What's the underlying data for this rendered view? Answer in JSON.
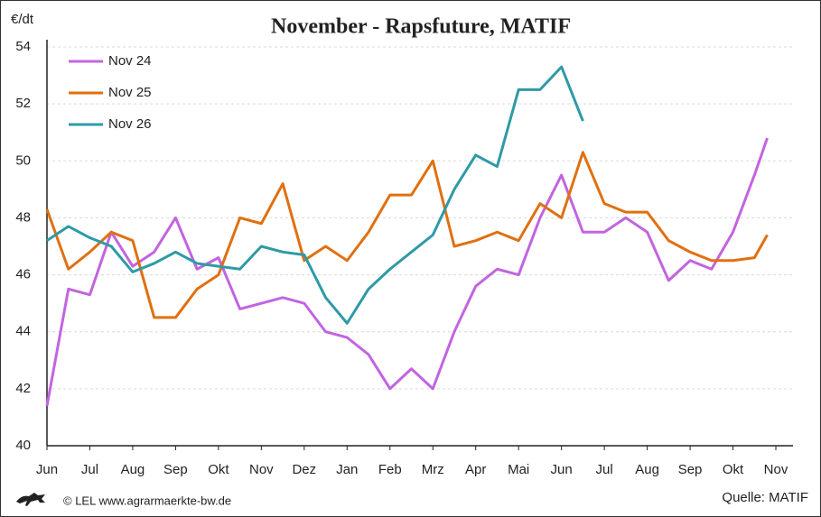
{
  "chart_data": {
    "type": "line",
    "title": "November - Rapsfuture, MATIF",
    "y_label": "€/dt",
    "source": "Quelle: MATIF",
    "credit": "© LEL www.agrarmaerkte-bw.de",
    "x": [
      0,
      0.5,
      1,
      1.5,
      2,
      2.5,
      3,
      3.5,
      4,
      4.5,
      5,
      5.5,
      6,
      6.5,
      7,
      7.5,
      8,
      8.5,
      9,
      9.5,
      10,
      10.5,
      11,
      11.5,
      12,
      12.5,
      13,
      13.5,
      14,
      14.5,
      15,
      15.5,
      16,
      16.5,
      16.8
    ],
    "xlim": [
      0,
      17.4
    ],
    "xticks": [
      {
        "value": 0,
        "label": "Jun"
      },
      {
        "value": 1,
        "label": "Jul"
      },
      {
        "value": 2,
        "label": "Aug"
      },
      {
        "value": 3,
        "label": "Sep"
      },
      {
        "value": 4,
        "label": "Okt"
      },
      {
        "value": 5,
        "label": "Nov"
      },
      {
        "value": 6,
        "label": "Dez"
      },
      {
        "value": 7,
        "label": "Jan"
      },
      {
        "value": 8,
        "label": "Feb"
      },
      {
        "value": 9,
        "label": "Mrz"
      },
      {
        "value": 10,
        "label": "Apr"
      },
      {
        "value": 11,
        "label": "Mai"
      },
      {
        "value": 12,
        "label": "Jun"
      },
      {
        "value": 13,
        "label": "Jul"
      },
      {
        "value": 14,
        "label": "Aug"
      },
      {
        "value": 15,
        "label": "Sep"
      },
      {
        "value": 16,
        "label": "Okt"
      },
      {
        "value": 17,
        "label": "Nov"
      }
    ],
    "ylim": [
      40,
      54
    ],
    "yticks": [
      40,
      42,
      44,
      46,
      48,
      50,
      52,
      54
    ],
    "grid": true,
    "legend": "top-left",
    "series": [
      {
        "name": "Nov 24",
        "color": "#c264e0",
        "values": [
          41.4,
          45.5,
          45.3,
          47.5,
          46.3,
          46.8,
          48.0,
          46.2,
          46.6,
          44.8,
          45.0,
          45.2,
          45.0,
          44.0,
          43.8,
          43.2,
          42.0,
          42.7,
          42.0,
          44.0,
          45.6,
          46.2,
          46.0,
          48.0,
          49.5,
          47.5,
          47.5,
          48.0,
          47.5,
          45.8,
          46.5,
          46.2,
          47.5,
          49.5,
          50.8
        ]
      },
      {
        "name": "Nov 25",
        "color": "#e0700f",
        "values": [
          48.3,
          46.2,
          46.8,
          47.5,
          47.2,
          44.5,
          44.5,
          45.5,
          46.0,
          48.0,
          47.8,
          49.2,
          46.5,
          47.0,
          46.5,
          47.5,
          48.8,
          48.8,
          50.0,
          47.0,
          47.2,
          47.5,
          47.2,
          48.5,
          48.0,
          50.3,
          48.5,
          48.2,
          48.2,
          47.2,
          46.8,
          46.5,
          46.5,
          46.6,
          47.4
        ]
      },
      {
        "name": "Nov 26",
        "color": "#2e9aa6",
        "values": [
          47.2,
          47.7,
          47.3,
          47.0,
          46.1,
          46.4,
          46.8,
          46.4,
          46.3,
          46.2,
          47.0,
          46.8,
          46.7,
          45.2,
          44.3,
          45.5,
          46.2,
          46.8,
          47.4,
          49.0,
          50.2,
          49.8,
          52.5,
          52.5,
          53.3,
          51.4,
          null,
          null,
          null,
          null,
          null,
          null,
          null,
          null,
          null
        ]
      }
    ]
  }
}
